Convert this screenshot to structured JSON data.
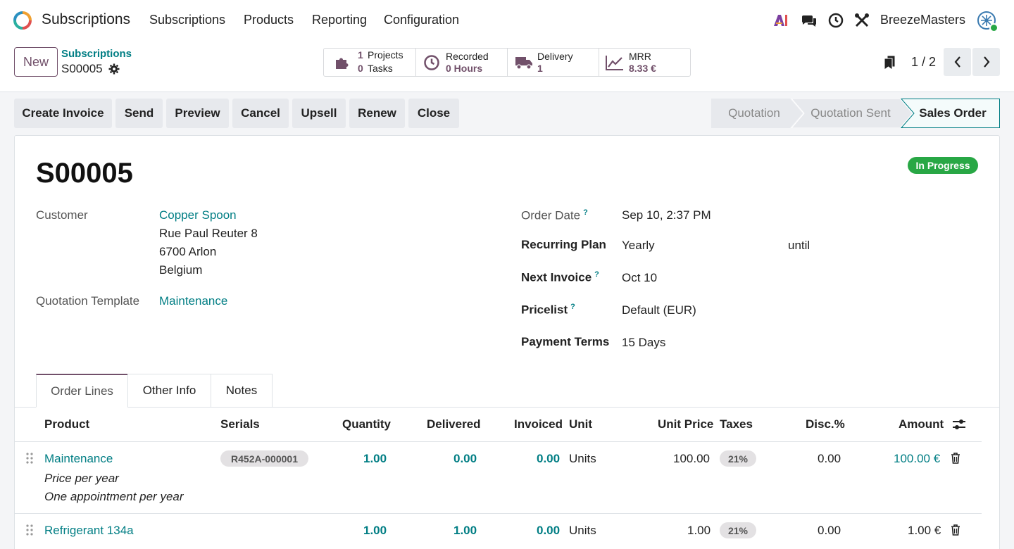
{
  "navbar": {
    "app_name": "Subscriptions",
    "menu": [
      "Subscriptions",
      "Products",
      "Reporting",
      "Configuration"
    ],
    "company": "BreezeMasters",
    "icons": [
      "ai-icon",
      "chat-icon",
      "clock-icon",
      "tools-icon"
    ]
  },
  "control": {
    "new_label": "New",
    "breadcrumb_parent": "Subscriptions",
    "breadcrumb_current": "S00005",
    "stats": {
      "projects_count": "1",
      "projects_label": "Projects",
      "tasks_count": "0",
      "tasks_label": "Tasks",
      "recorded_label": "Recorded",
      "recorded_value": "0 Hours",
      "delivery_label": "Delivery",
      "delivery_value": "1",
      "mrr_label": "MRR",
      "mrr_value": "8.33 €"
    },
    "pager": "1 / 2"
  },
  "actions": [
    "Create Invoice",
    "Send",
    "Preview",
    "Cancel",
    "Upsell",
    "Renew",
    "Close"
  ],
  "stages": [
    "Quotation",
    "Quotation Sent",
    "Sales Order"
  ],
  "record": {
    "ribbon": "In Progress",
    "title": "S00005",
    "customer_label": "Customer",
    "customer_name": "Copper Spoon",
    "address_line1": "Rue Paul Reuter 8",
    "address_line2": "6700 Arlon",
    "address_line3": "Belgium",
    "template_label": "Quotation Template",
    "template_value": "Maintenance",
    "order_date_label": "Order Date",
    "order_date_value": "Sep 10, 2:37 PM",
    "plan_label": "Recurring Plan",
    "plan_value": "Yearly",
    "until_label": "until",
    "next_invoice_label": "Next Invoice",
    "next_invoice_value": "Oct 10",
    "pricelist_label": "Pricelist",
    "pricelist_value": "Default (EUR)",
    "payment_terms_label": "Payment Terms",
    "payment_terms_value": "15 Days",
    "help_mark": "?"
  },
  "tabs": [
    "Order Lines",
    "Other Info",
    "Notes"
  ],
  "table": {
    "headers": [
      "Product",
      "Serials",
      "Quantity",
      "Delivered",
      "Invoiced",
      "Unit",
      "Unit Price",
      "Taxes",
      "Disc.%",
      "Amount"
    ],
    "rows": [
      {
        "product": "Maintenance",
        "description1": "Price per year",
        "description2": "One appointment per year",
        "serial": "R452A-000001",
        "quantity": "1.00",
        "delivered": "0.00",
        "invoiced": "0.00",
        "unit": "Units",
        "unit_price": "100.00",
        "tax": "21%",
        "discount": "0.00",
        "amount": "100.00 €"
      },
      {
        "product": "Refrigerant 134a",
        "quantity": "1.00",
        "delivered": "1.00",
        "invoiced": "0.00",
        "unit": "Units",
        "unit_price": "1.00",
        "tax": "21%",
        "discount": "0.00",
        "amount": "1.00 €"
      }
    ]
  },
  "colors": {
    "brand": "#71506a",
    "link": "#017e84",
    "success": "#28a745"
  }
}
